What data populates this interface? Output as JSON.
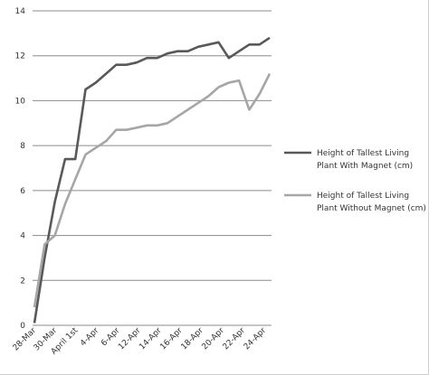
{
  "chart_data": {
    "type": "line",
    "title": "",
    "xlabel": "",
    "ylabel": "",
    "ylim": [
      0,
      14
    ],
    "yticks": [
      0,
      2,
      4,
      6,
      8,
      10,
      12,
      14
    ],
    "grid": true,
    "legend_position": "right",
    "x_tick_labels": [
      "28-Mar",
      "30-Mar",
      "April 1st",
      "4-Apr",
      "6-Apr",
      "12-Apr",
      "14-Apr",
      "16-Apr",
      "18-Apr",
      "20-Apr",
      "22-Apr",
      "24-Apr"
    ],
    "series": [
      {
        "name": "Height of Tallest Living Plant With Magnet (cm)",
        "color": "#595959",
        "values": [
          0.1,
          3.0,
          5.5,
          7.4,
          7.4,
          10.5,
          10.8,
          11.2,
          11.6,
          11.6,
          11.7,
          11.9,
          11.9,
          12.1,
          12.2,
          12.2,
          12.4,
          12.5,
          12.6,
          11.9,
          12.2,
          12.5,
          12.5,
          12.8
        ]
      },
      {
        "name": "Height of Tallest Living Plant Without Magnet (cm)",
        "color": "#a6a6a6",
        "values": [
          0.8,
          3.6,
          4.0,
          5.4,
          6.5,
          7.6,
          7.9,
          8.2,
          8.7,
          8.7,
          8.8,
          8.9,
          8.9,
          9.0,
          9.3,
          9.6,
          9.9,
          10.2,
          10.6,
          10.8,
          10.9,
          9.6,
          10.3,
          11.2
        ]
      }
    ]
  }
}
